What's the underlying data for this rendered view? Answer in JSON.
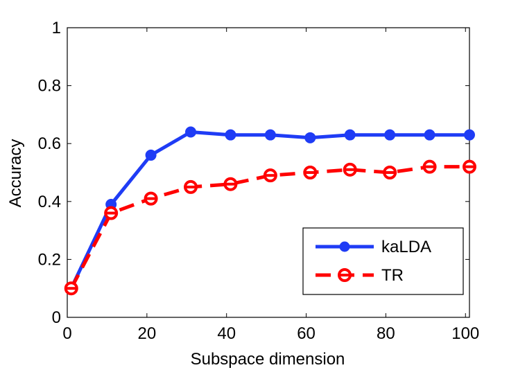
{
  "chart_data": {
    "type": "line",
    "xlabel": "Subspace dimension",
    "ylabel": "Accuracy",
    "xlim": [
      0,
      101
    ],
    "ylim": [
      0,
      1
    ],
    "xticks": [
      0,
      20,
      40,
      60,
      80,
      100
    ],
    "yticks": [
      0,
      0.2,
      0.4,
      0.6,
      0.8,
      1
    ],
    "ytick_labels": [
      "0",
      "0.2",
      "0.4",
      "0.6",
      "0.8",
      "1"
    ],
    "xtick_labels": [
      "0",
      "20",
      "40",
      "60",
      "80",
      "100"
    ],
    "grid": false,
    "legend_position": "bottom-right",
    "series": [
      {
        "name": "kaLDA",
        "color": "#1f3cf5",
        "line_style": "solid",
        "marker": "filled-circle",
        "x": [
          1,
          11,
          21,
          31,
          41,
          51,
          61,
          71,
          81,
          91,
          101
        ],
        "y": [
          0.1,
          0.39,
          0.56,
          0.64,
          0.63,
          0.63,
          0.62,
          0.63,
          0.63,
          0.63,
          0.63
        ]
      },
      {
        "name": "TR",
        "color": "#ff0000",
        "line_style": "dashed",
        "marker": "open-circle",
        "x": [
          1,
          11,
          21,
          31,
          41,
          51,
          61,
          71,
          81,
          91,
          101
        ],
        "y": [
          0.1,
          0.36,
          0.41,
          0.45,
          0.46,
          0.49,
          0.5,
          0.51,
          0.5,
          0.52,
          0.52
        ]
      }
    ]
  }
}
